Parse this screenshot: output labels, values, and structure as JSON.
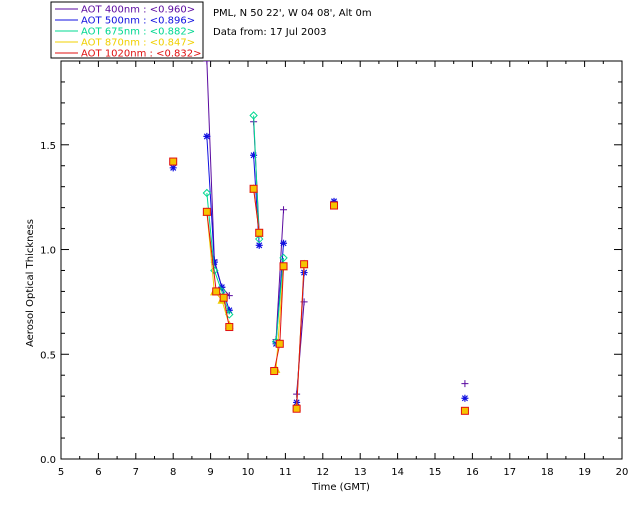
{
  "header": {
    "site": "PML, N 50 22', W 04 08', Alt 0m",
    "date": "Data from: 17 Jul 2003"
  },
  "chart_data": {
    "type": "scatter",
    "xlabel": "Time (GMT)",
    "ylabel": "Aerosol Optical Thickness",
    "xlim": [
      5,
      20
    ],
    "ylim": [
      0.0,
      1.9
    ],
    "xticks": [
      "5",
      "6",
      "7",
      "8",
      "9",
      "10",
      "11",
      "12",
      "13",
      "14",
      "15",
      "16",
      "17",
      "18",
      "19",
      "20"
    ],
    "yticks": [
      "0.0",
      "0.5",
      "1.0",
      "1.5"
    ],
    "legend_position": "top-left (outside plot)",
    "series": [
      {
        "name": "AOT  400nm : <0.960>",
        "color": "#5a0aa0",
        "marker": "plus",
        "x": [
          8.9,
          9.1,
          9.3,
          9.5,
          10.15,
          10.3,
          10.75,
          10.95,
          11.3,
          11.5,
          15.8
        ],
        "y": [
          1.9,
          0.95,
          0.82,
          0.78,
          1.61,
          1.08,
          0.57,
          1.19,
          0.31,
          0.75,
          0.36
        ]
      },
      {
        "name": "AOT  500nm : <0.896>",
        "color": "#1010e0",
        "marker": "asterisk",
        "x": [
          8.0,
          8.9,
          9.1,
          9.3,
          9.5,
          10.15,
          10.3,
          10.75,
          10.95,
          11.3,
          11.5,
          12.3,
          15.8
        ],
        "y": [
          1.39,
          1.54,
          0.94,
          0.82,
          0.71,
          1.45,
          1.02,
          0.55,
          1.03,
          0.27,
          0.89,
          1.23,
          0.29
        ]
      },
      {
        "name": "AOT  675nm : <0.882>",
        "color": "#00d890",
        "marker": "diamond",
        "x": [
          8.9,
          9.1,
          9.3,
          9.5,
          10.15,
          10.3,
          10.75,
          10.95
        ],
        "y": [
          1.27,
          0.9,
          0.8,
          0.69,
          1.64,
          1.05,
          0.56,
          0.96
        ]
      },
      {
        "name": "AOT  870nm : <0.847>",
        "color": "#f0d000",
        "marker": "triangle",
        "x": [
          8.9,
          9.1,
          9.3,
          9.5,
          10.15,
          10.3,
          10.75,
          10.95,
          11.3,
          11.5
        ],
        "y": [
          1.18,
          0.8,
          0.76,
          0.64,
          1.29,
          1.08,
          0.43,
          0.92,
          0.25,
          0.93
        ]
      },
      {
        "name": "AOT 1020nm : <0.832>",
        "color": "#e01010",
        "marker": "square",
        "x": [
          8.0,
          8.9,
          9.15,
          9.35,
          9.5,
          10.15,
          10.3,
          10.7,
          10.85,
          10.95,
          11.3,
          11.5,
          12.3,
          15.8
        ],
        "y": [
          1.42,
          1.18,
          0.8,
          0.77,
          0.63,
          1.29,
          1.08,
          0.42,
          0.55,
          0.92,
          0.24,
          0.93,
          1.21,
          0.23
        ]
      }
    ]
  }
}
